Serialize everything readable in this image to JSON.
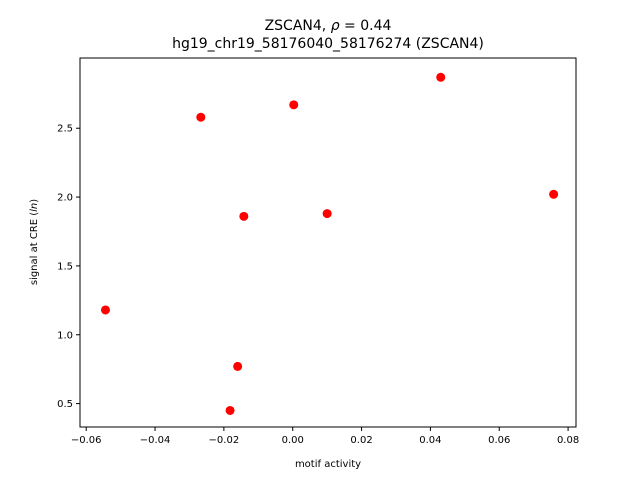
{
  "chart_data": {
    "type": "scatter",
    "title_line1_prefix": "ZSCAN4, ",
    "title_line1_rho": "ρ",
    "title_line1_suffix": " = 0.44",
    "title_line2": "hg19_chr19_58176040_58176274 (ZSCAN4)",
    "xlabel": "motif activity",
    "ylabel_prefix": "signal at CRE (",
    "ylabel_italic": "ln",
    "ylabel_suffix": ")",
    "xlim": [
      -0.0618,
      0.0823
    ],
    "ylim": [
      0.33,
      3.01
    ],
    "xticks": [
      -0.06,
      -0.04,
      -0.02,
      0.0,
      0.02,
      0.04,
      0.06,
      0.08
    ],
    "xtick_labels": [
      "−0.06",
      "−0.04",
      "−0.02",
      "0.00",
      "0.02",
      "0.04",
      "0.06",
      "0.08"
    ],
    "yticks": [
      0.5,
      1.0,
      1.5,
      2.0,
      2.5
    ],
    "ytick_labels": [
      "0.5",
      "1.0",
      "1.5",
      "2.0",
      "2.5"
    ],
    "grid": false,
    "legend": "none",
    "marker_color": "#ff0000",
    "points": [
      {
        "x": -0.0544,
        "y": 1.18
      },
      {
        "x": -0.0267,
        "y": 2.58
      },
      {
        "x": -0.0182,
        "y": 0.45
      },
      {
        "x": -0.016,
        "y": 0.77
      },
      {
        "x": -0.0142,
        "y": 1.86
      },
      {
        "x": 0.0003,
        "y": 2.67
      },
      {
        "x": 0.01,
        "y": 1.88
      },
      {
        "x": 0.043,
        "y": 2.87
      },
      {
        "x": 0.0758,
        "y": 2.02
      }
    ]
  }
}
